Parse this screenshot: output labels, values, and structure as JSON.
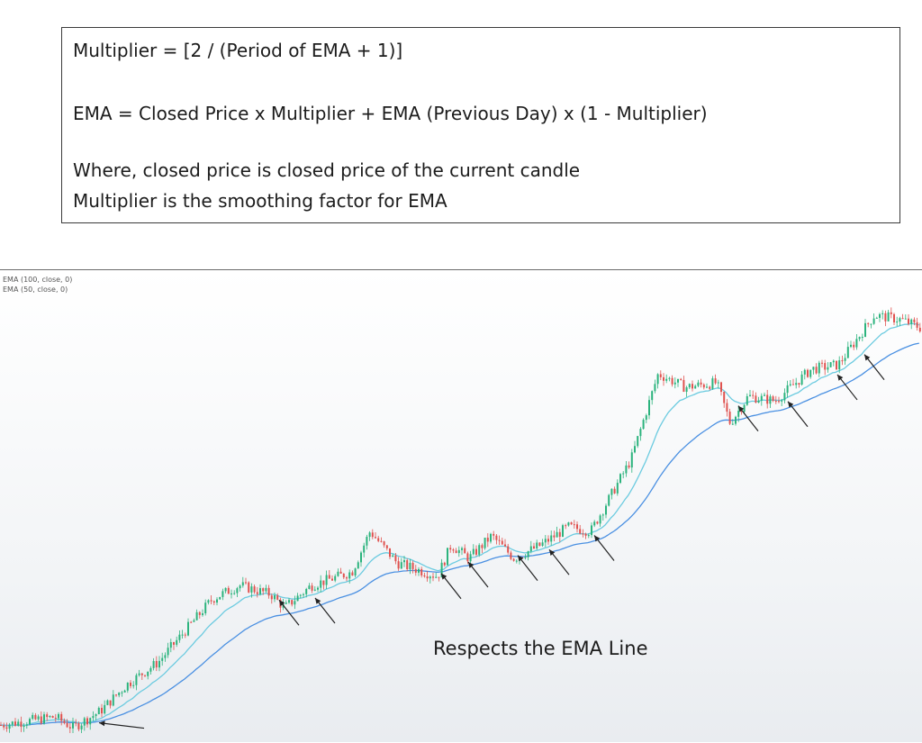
{
  "formula": {
    "line1": "Multiplier = [2 / (Period of EMA + 1)]",
    "line2": "EMA = Closed Price x Multiplier + EMA (Previous Day) x (1 - Multiplier)",
    "line3": "Where, closed price is closed price of the current candle",
    "line4": "Multiplier is the smoothing factor for EMA"
  },
  "chart_data": {
    "type": "candlestick",
    "series": [
      {
        "name": "EMA (100, close, 0)",
        "color": "#4a90e2"
      },
      {
        "name": "EMA (50, close, 0)",
        "color": "#6ccbe0"
      }
    ],
    "candle_colors": {
      "up": "#2bb37d",
      "down": "#e0524f"
    },
    "price_path": [
      [
        0,
        5
      ],
      [
        60,
        14
      ],
      [
        80,
        2
      ],
      [
        110,
        20
      ],
      [
        140,
        50
      ],
      [
        175,
        75
      ],
      [
        205,
        110
      ],
      [
        235,
        145
      ],
      [
        265,
        160
      ],
      [
        300,
        150
      ],
      [
        315,
        135
      ],
      [
        345,
        160
      ],
      [
        390,
        175
      ],
      [
        410,
        220
      ],
      [
        440,
        185
      ],
      [
        470,
        175
      ],
      [
        485,
        170
      ],
      [
        500,
        205
      ],
      [
        520,
        190
      ],
      [
        545,
        215
      ],
      [
        570,
        190
      ],
      [
        600,
        205
      ],
      [
        630,
        225
      ],
      [
        655,
        220
      ],
      [
        700,
        300
      ],
      [
        730,
        395
      ],
      [
        760,
        380
      ],
      [
        795,
        385
      ],
      [
        810,
        340
      ],
      [
        830,
        370
      ],
      [
        860,
        365
      ],
      [
        900,
        400
      ],
      [
        930,
        405
      ],
      [
        970,
        460
      ],
      [
        1000,
        455
      ],
      [
        1024,
        445
      ]
    ],
    "ema_periods": [
      50,
      100
    ],
    "annotation": "Respects the EMA Line",
    "touch_points": [
      110,
      310,
      350,
      490,
      520,
      575,
      610,
      660,
      820,
      875,
      930,
      960
    ]
  }
}
